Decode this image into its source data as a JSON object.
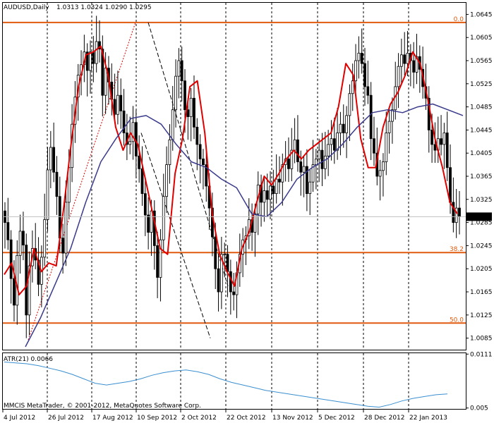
{
  "chart_title": {
    "symbol": "AUDUSD,Daily",
    "ohlc": "1.0313 1.0324 1.0290 1.0295"
  },
  "current_price_label": "1.0295",
  "copyright": "MMCIS MetaTrader, © 2001-2012, MetaQuotes Software Corp.",
  "colors": {
    "background": "#ffffff",
    "grid": "#000000",
    "candle": "#000000",
    "ema_fast": "#e00000",
    "ma_slow": "#3a3a8c",
    "fib": "#e05a10",
    "atr": "#3a8fd0",
    "price_marker": "#000000"
  },
  "chart_data": [
    {
      "type": "candlestick",
      "title": "AUDUSD,Daily",
      "ylim": [
        1.0065,
        1.0665
      ],
      "y_ticks": [
        "1.0645",
        "1.0605",
        "1.0565",
        "1.0525",
        "1.0485",
        "1.0445",
        "1.0405",
        "1.0365",
        "1.0325",
        "1.0285",
        "1.0245",
        "1.0205",
        "1.0165",
        "1.0125",
        "1.0085"
      ],
      "x_ticks": [
        "4 Jul 2012",
        "26 Jul 2012",
        "17 Aug 2012",
        "10 Sep 2012",
        "2 Oct 2012",
        "22 Oct 2012",
        "13 Nov 2012",
        "5 Dec 2012",
        "28 Dec 2012",
        "22 Jan 2013"
      ],
      "grid": "vertical-dashed",
      "fibonacci_levels": [
        {
          "label": "0.0",
          "price": 1.0631
        },
        {
          "label": "38.2",
          "price": 1.0233
        },
        {
          "label": "50.0",
          "price": 1.0111
        }
      ],
      "last_price": 1.0295,
      "series": [
        {
          "name": "close",
          "values": [
            1.0285,
            1.0255,
            1.0188,
            1.0142,
            1.0228,
            1.027,
            1.0246,
            1.0125,
            1.021,
            1.024,
            1.022,
            1.0178,
            1.0225,
            1.029,
            1.0376,
            1.0415,
            1.0372,
            1.033,
            1.0258,
            1.0232,
            1.032,
            1.038,
            1.0455,
            1.0502,
            1.054,
            1.0558,
            1.058,
            1.0548,
            1.058,
            1.056,
            1.0598,
            1.0585,
            1.0505,
            1.0552,
            1.0528,
            1.0498,
            1.0472,
            1.0505,
            1.0478,
            1.044,
            1.042,
            1.0425,
            1.0458,
            1.04,
            1.0378,
            1.0335,
            1.0298,
            1.0268,
            1.0305,
            1.0245,
            1.019,
            1.0255,
            1.033,
            1.0385,
            1.0428,
            1.048,
            1.0538,
            1.0565,
            1.053,
            1.048,
            1.0468,
            1.05,
            1.045,
            1.042,
            1.0395,
            1.0385,
            1.0348,
            1.031,
            1.026,
            1.0205,
            1.0165,
            1.023,
            1.023,
            1.02,
            1.0165,
            1.016,
            1.0198,
            1.023,
            1.0255,
            1.0262,
            1.029,
            1.0268,
            1.03,
            1.035,
            1.032,
            1.034,
            1.0325,
            1.0348,
            1.0335,
            1.036,
            1.0355,
            1.0385,
            1.0395,
            1.0378,
            1.041,
            1.0428,
            1.039,
            1.0372,
            1.0382,
            1.0335,
            1.0355,
            1.0385,
            1.0395,
            1.041,
            1.0378,
            1.04,
            1.042,
            1.043,
            1.041,
            1.044,
            1.0455,
            1.044,
            1.047,
            1.0508,
            1.053,
            1.0565,
            1.0578,
            1.056,
            1.052,
            1.0505,
            1.043,
            1.0405,
            1.0365,
            1.0375,
            1.039,
            1.044,
            1.046,
            1.048,
            1.052,
            1.0555,
            1.0575,
            1.056,
            1.0578,
            1.0565,
            1.0545,
            1.0572,
            1.055,
            1.052,
            1.05,
            1.0445,
            1.042,
            1.041,
            1.043,
            1.042,
            1.044,
            1.038,
            1.032,
            1.0285,
            1.031,
            1.0295
          ]
        },
        {
          "name": "EMA (red)",
          "values": [
            1.0195,
            1.0215,
            1.016,
            1.0175,
            1.024,
            1.02,
            1.0215,
            1.021,
            1.031,
            1.042,
            1.052,
            1.0575,
            1.058,
            1.059,
            1.054,
            1.045,
            1.041,
            1.044,
            1.042,
            1.036,
            1.03,
            1.024,
            1.023,
            1.037,
            1.043,
            1.052,
            1.053,
            1.044,
            1.03,
            1.023,
            1.02,
            1.0175,
            1.024,
            1.027,
            1.032,
            1.0365,
            1.035,
            1.037,
            1.0395,
            1.041,
            1.0395,
            1.041,
            1.042,
            1.043,
            1.044,
            1.0485,
            1.056,
            1.054,
            1.043,
            1.038,
            1.038,
            1.045,
            1.049,
            1.051,
            1.054,
            1.058,
            1.056,
            1.05,
            1.043,
            1.038,
            1.032,
            1.03
          ]
        },
        {
          "name": "SMA (blue)",
          "values": [
            1.007,
            1.012,
            1.018,
            1.024,
            1.032,
            1.039,
            1.043,
            1.0465,
            1.047,
            1.0455,
            1.042,
            1.039,
            1.038,
            1.036,
            1.0345,
            1.03,
            1.0295,
            1.032,
            1.036,
            1.038,
            1.0395,
            1.042,
            1.045,
            1.0475,
            1.048,
            1.0475,
            1.0485,
            1.049,
            1.048,
            1.047
          ]
        }
      ]
    },
    {
      "type": "line",
      "title": "ATR(21) 0.0066",
      "ylim": [
        0.0049,
        0.0112
      ],
      "y_ticks": [
        "0.0111",
        "0.005"
      ],
      "series": [
        {
          "name": "ATR(21)",
          "values": [
            0.0102,
            0.0101,
            0.01,
            0.0098,
            0.0095,
            0.0092,
            0.0088,
            0.0083,
            0.0078,
            0.0076,
            0.0078,
            0.008,
            0.0083,
            0.0087,
            0.009,
            0.0092,
            0.0093,
            0.0091,
            0.0088,
            0.0083,
            0.0079,
            0.0076,
            0.0073,
            0.007,
            0.0068,
            0.0066,
            0.0064,
            0.0062,
            0.006,
            0.0058,
            0.0056,
            0.0054,
            0.0052,
            0.0051,
            0.0054,
            0.0058,
            0.0061,
            0.0063,
            0.0065,
            0.0066
          ]
        }
      ]
    }
  ]
}
